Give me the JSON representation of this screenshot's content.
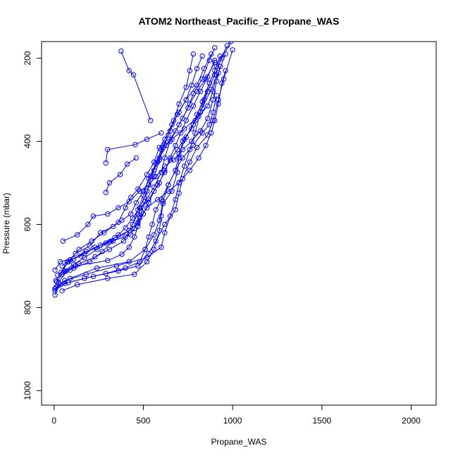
{
  "chart_data": {
    "type": "line",
    "title": "ATOM2 Northeast_Pacific_2 Propane_WAS",
    "xlabel": "Propane_WAS",
    "ylabel": "Pressure (mbar)",
    "xlim": [
      -70,
      2140
    ],
    "ylim": [
      1035,
      160
    ],
    "y_axis_inverted": true,
    "x_ticks": [
      0,
      500,
      1000,
      1500,
      2000
    ],
    "y_ticks": [
      200,
      400,
      600,
      800,
      1000
    ],
    "grid": false,
    "legend": "none",
    "series_color": "#0000ff",
    "marker": "open-circle",
    "series": [
      {
        "points": [
          [
            5,
            760
          ],
          [
            20,
            748
          ],
          [
            60,
            735
          ],
          [
            180,
            720
          ],
          [
            350,
            700
          ],
          [
            520,
            680
          ],
          [
            600,
            655
          ],
          [
            620,
            620
          ],
          [
            650,
            580
          ],
          [
            680,
            540
          ],
          [
            700,
            500
          ],
          [
            730,
            460
          ],
          [
            760,
            420
          ],
          [
            790,
            380
          ],
          [
            820,
            330
          ],
          [
            860,
            280
          ],
          [
            900,
            240
          ],
          [
            940,
            200
          ],
          [
            990,
            160
          ]
        ]
      },
      {
        "points": [
          [
            5,
            755
          ],
          [
            35,
            745
          ],
          [
            90,
            730
          ],
          [
            240,
            705
          ],
          [
            420,
            690
          ],
          [
            510,
            660
          ],
          [
            560,
            625
          ],
          [
            590,
            590
          ],
          [
            610,
            545
          ],
          [
            640,
            505
          ],
          [
            680,
            470
          ],
          [
            700,
            430
          ],
          [
            740,
            390
          ],
          [
            790,
            350
          ],
          [
            830,
            305
          ],
          [
            870,
            260
          ],
          [
            910,
            220
          ],
          [
            970,
            170
          ]
        ]
      },
      {
        "points": [
          [
            15,
            738
          ],
          [
            45,
            720
          ],
          [
            110,
            705
          ],
          [
            200,
            690
          ],
          [
            270,
            665
          ],
          [
            330,
            640
          ],
          [
            420,
            615
          ],
          [
            470,
            575
          ],
          [
            510,
            545
          ],
          [
            560,
            510
          ],
          [
            600,
            475
          ],
          [
            620,
            440
          ],
          [
            650,
            400
          ],
          [
            700,
            360
          ],
          [
            750,
            320
          ],
          [
            780,
            285
          ],
          [
            830,
            250
          ],
          [
            870,
            205
          ],
          [
            900,
            175
          ]
        ]
      },
      {
        "points": [
          [
            5,
            710
          ],
          [
            35,
            690
          ],
          [
            110,
            683
          ],
          [
            180,
            665
          ],
          [
            290,
            645
          ],
          [
            430,
            625
          ],
          [
            470,
            595
          ],
          [
            480,
            560
          ],
          [
            520,
            520
          ],
          [
            560,
            485
          ],
          [
            590,
            445
          ],
          [
            620,
            408
          ],
          [
            650,
            375
          ],
          [
            690,
            335
          ],
          [
            740,
            300
          ],
          [
            800,
            265
          ],
          [
            840,
            225
          ],
          [
            880,
            190
          ]
        ]
      },
      {
        "points": [
          [
            45,
            760
          ],
          [
            130,
            745
          ],
          [
            300,
            730
          ],
          [
            450,
            720
          ],
          [
            520,
            690
          ],
          [
            560,
            660
          ],
          [
            590,
            615
          ],
          [
            600,
            580
          ],
          [
            610,
            550
          ],
          [
            660,
            520
          ],
          [
            690,
            475
          ],
          [
            700,
            440
          ],
          [
            720,
            400
          ],
          [
            770,
            370
          ],
          [
            800,
            335
          ],
          [
            840,
            300
          ],
          [
            870,
            260
          ],
          [
            900,
            230
          ],
          [
            930,
            195
          ]
        ]
      },
      {
        "points": [
          [
            10,
            752
          ],
          [
            80,
            740
          ],
          [
            220,
            725
          ],
          [
            360,
            712
          ],
          [
            470,
            700
          ],
          [
            530,
            670
          ],
          [
            570,
            640
          ],
          [
            620,
            600
          ],
          [
            680,
            565
          ],
          [
            700,
            525
          ],
          [
            720,
            490
          ],
          [
            760,
            450
          ],
          [
            800,
            415
          ],
          [
            860,
            385
          ],
          [
            890,
            350
          ],
          [
            920,
            300
          ],
          [
            950,
            250
          ],
          [
            1000,
            180
          ]
        ]
      },
      {
        "points": [
          [
            5,
            770
          ],
          [
            25,
            740
          ],
          [
            70,
            712
          ],
          [
            140,
            695
          ],
          [
            230,
            678
          ],
          [
            310,
            660
          ],
          [
            390,
            640
          ],
          [
            440,
            600
          ],
          [
            470,
            565
          ],
          [
            500,
            530
          ],
          [
            530,
            490
          ],
          [
            570,
            455
          ],
          [
            600,
            420
          ],
          [
            640,
            385
          ],
          [
            670,
            350
          ],
          [
            700,
            310
          ],
          [
            740,
            270
          ],
          [
            760,
            230
          ],
          [
            780,
            190
          ]
        ]
      },
      {
        "points": [
          [
            40,
            715
          ],
          [
            75,
            690
          ],
          [
            120,
            670
          ],
          [
            200,
            652
          ],
          [
            260,
            620
          ],
          [
            330,
            605
          ],
          [
            380,
            590
          ],
          [
            430,
            575
          ],
          [
            460,
            548
          ],
          [
            500,
            520
          ],
          [
            540,
            485
          ],
          [
            580,
            450
          ],
          [
            610,
            415
          ],
          [
            660,
            395
          ],
          [
            730,
            370
          ],
          [
            810,
            340
          ],
          [
            860,
            315
          ],
          [
            890,
            280
          ],
          [
            910,
            240
          ]
        ]
      },
      {
        "points": [
          [
            55,
            715
          ],
          [
            90,
            710
          ],
          [
            120,
            700
          ],
          [
            300,
            687
          ],
          [
            380,
            672
          ],
          [
            420,
            655
          ],
          [
            450,
            630
          ],
          [
            470,
            605
          ],
          [
            490,
            570
          ],
          [
            510,
            545
          ],
          [
            530,
            505
          ],
          [
            560,
            470
          ],
          [
            590,
            440
          ],
          [
            630,
            410
          ],
          [
            680,
            375
          ],
          [
            720,
            345
          ],
          [
            760,
            310
          ],
          [
            800,
            280
          ],
          [
            850,
            250
          ],
          [
            900,
            210
          ]
        ]
      },
      {
        "points": [
          [
            5,
            755
          ],
          [
            60,
            742
          ],
          [
            170,
            730
          ],
          [
            290,
            718
          ],
          [
            400,
            705
          ],
          [
            480,
            690
          ],
          [
            510,
            660
          ],
          [
            530,
            630
          ],
          [
            550,
            600
          ],
          [
            570,
            565
          ],
          [
            600,
            540
          ],
          [
            640,
            505
          ],
          [
            680,
            470
          ],
          [
            720,
            440
          ],
          [
            780,
            410
          ],
          [
            830,
            380
          ],
          [
            870,
            360
          ],
          [
            890,
            330
          ],
          [
            910,
            290
          ]
        ]
      },
      {
        "points": [
          [
            45,
            700
          ],
          [
            90,
            685
          ],
          [
            150,
            676
          ],
          [
            230,
            655
          ],
          [
            320,
            640
          ],
          [
            400,
            630
          ],
          [
            450,
            610
          ],
          [
            480,
            585
          ],
          [
            520,
            560
          ],
          [
            580,
            540
          ],
          [
            640,
            520
          ],
          [
            700,
            500
          ],
          [
            760,
            470
          ],
          [
            810,
            440
          ],
          [
            850,
            410
          ],
          [
            880,
            380
          ],
          [
            900,
            350
          ],
          [
            920,
            310
          ],
          [
            940,
            260
          ],
          [
            960,
            230
          ]
        ]
      },
      {
        "points": [
          [
            80,
            690
          ],
          [
            170,
            670
          ],
          [
            260,
            650
          ],
          [
            340,
            632
          ],
          [
            420,
            615
          ],
          [
            470,
            598
          ],
          [
            500,
            575
          ],
          [
            530,
            548
          ],
          [
            560,
            520
          ],
          [
            590,
            500
          ],
          [
            620,
            470
          ],
          [
            650,
            445
          ],
          [
            690,
            420
          ],
          [
            730,
            395
          ],
          [
            780,
            360
          ],
          [
            830,
            320
          ],
          [
            880,
            275
          ],
          [
            920,
            235
          ],
          [
            960,
            190
          ]
        ]
      },
      {
        "points": [
          [
            10,
            735
          ],
          [
            80,
            690
          ],
          [
            140,
            660
          ],
          [
            210,
            640
          ],
          [
            280,
            620
          ],
          [
            360,
            595
          ],
          [
            400,
            560
          ],
          [
            430,
            535
          ],
          [
            470,
            515
          ],
          [
            520,
            480
          ],
          [
            560,
            450
          ],
          [
            590,
            415
          ],
          [
            620,
            395
          ],
          [
            660,
            360
          ],
          [
            700,
            330
          ],
          [
            740,
            300
          ],
          [
            770,
            265
          ],
          [
            800,
            225
          ],
          [
            830,
            195
          ]
        ]
      },
      {
        "points": [
          [
            50,
            640
          ],
          [
            130,
            625
          ],
          [
            190,
            600
          ],
          [
            220,
            580
          ],
          [
            300,
            575
          ],
          [
            360,
            560
          ],
          [
            420,
            545
          ],
          [
            480,
            520
          ],
          [
            530,
            505
          ],
          [
            570,
            485
          ],
          [
            620,
            460
          ],
          [
            670,
            445
          ],
          [
            720,
            420
          ],
          [
            770,
            400
          ],
          [
            820,
            375
          ],
          [
            860,
            345
          ],
          [
            890,
            300
          ],
          [
            910,
            255
          ],
          [
            930,
            220
          ]
        ]
      },
      {
        "points": [
          [
            20,
            722
          ],
          [
            60,
            712
          ],
          [
            110,
            696
          ],
          [
            170,
            680
          ],
          [
            240,
            660
          ],
          [
            310,
            642
          ],
          [
            360,
            625
          ],
          [
            400,
            608
          ],
          [
            440,
            585
          ],
          [
            480,
            560
          ],
          [
            530,
            540
          ],
          [
            580,
            505
          ],
          [
            620,
            475
          ],
          [
            650,
            440
          ],
          [
            680,
            410
          ],
          [
            710,
            380
          ],
          [
            740,
            350
          ],
          [
            780,
            315
          ],
          [
            820,
            280
          ],
          [
            860,
            245
          ],
          [
            900,
            205
          ]
        ]
      },
      {
        "points": [
          [
            375,
            183
          ],
          [
            420,
            230
          ],
          [
            445,
            240
          ],
          [
            540,
            350
          ]
        ]
      },
      {
        "points": [
          [
            290,
            452
          ],
          [
            300,
            420
          ],
          [
            455,
            408
          ],
          [
            520,
            395
          ],
          [
            600,
            380
          ]
        ]
      },
      {
        "points": [
          [
            290,
            523
          ],
          [
            310,
            500
          ],
          [
            370,
            480
          ],
          [
            410,
            455
          ],
          [
            460,
            440
          ]
        ]
      }
    ]
  }
}
